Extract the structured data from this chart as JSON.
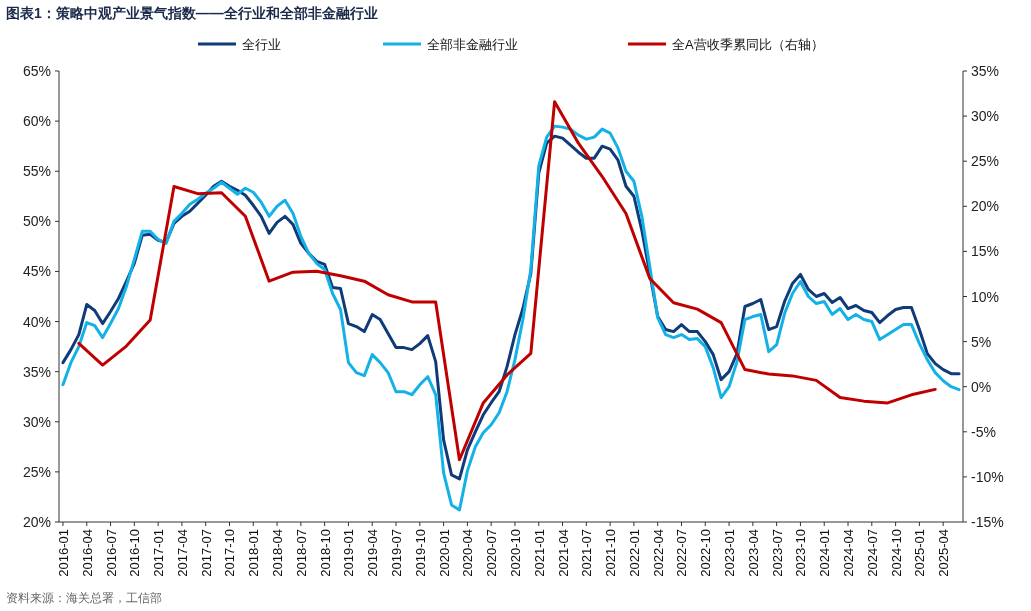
{
  "chart_data": {
    "type": "line",
    "title": "图表1：策略中观产业景气指数——全行业和全部非金融行业",
    "annotations": [
      "资料来源：海关总署，工信部"
    ],
    "legend": "top",
    "marker": "none",
    "line_style": "solid",
    "grid": false,
    "xlim": [
      "2015-12-16",
      "2025-06-16"
    ],
    "xticks": [
      "2016-01",
      "2016-04",
      "2016-07",
      "2016-10",
      "2017-01",
      "2017-04",
      "2017-07",
      "2017-10",
      "2018-01",
      "2018-04",
      "2018-07",
      "2018-10",
      "2019-01",
      "2019-04",
      "2019-07",
      "2019-10",
      "2020-01",
      "2020-04",
      "2020-07",
      "2020-10",
      "2021-01",
      "2021-04",
      "2021-07",
      "2021-10",
      "2022-01",
      "2022-04",
      "2022-07",
      "2022-10",
      "2023-01",
      "2023-04",
      "2023-07",
      "2023-10",
      "2024-01",
      "2024-04",
      "2024-07",
      "2024-10",
      "2025-01",
      "2025-04"
    ],
    "ylim": [
      20,
      65
    ],
    "yticks": [
      {
        "value": 20,
        "label": "20%"
      },
      {
        "value": 25,
        "label": "25%"
      },
      {
        "value": 30,
        "label": "30%"
      },
      {
        "value": 35,
        "label": "35%"
      },
      {
        "value": 40,
        "label": "40%"
      },
      {
        "value": 45,
        "label": "45%"
      },
      {
        "value": 50,
        "label": "50%"
      },
      {
        "value": 55,
        "label": "55%"
      },
      {
        "value": 60,
        "label": "60%"
      },
      {
        "value": 65,
        "label": "65%"
      }
    ],
    "y2lim": [
      -15,
      35
    ],
    "y2ticks": [
      {
        "value": -15,
        "label": "-15%"
      },
      {
        "value": -10,
        "label": "-10%"
      },
      {
        "value": -5,
        "label": "-5%"
      },
      {
        "value": 0,
        "label": "0%"
      },
      {
        "value": 5,
        "label": "5%"
      },
      {
        "value": 10,
        "label": "10%"
      },
      {
        "value": 15,
        "label": "15%"
      },
      {
        "value": 20,
        "label": "20%"
      },
      {
        "value": 25,
        "label": "25%"
      },
      {
        "value": 30,
        "label": "30%"
      },
      {
        "value": 35,
        "label": "35%"
      }
    ],
    "x": [
      "2016-01",
      "2016-02",
      "2016-03",
      "2016-04",
      "2016-05",
      "2016-06",
      "2016-07",
      "2016-08",
      "2016-09",
      "2016-10",
      "2016-11",
      "2016-12",
      "2017-01",
      "2017-02",
      "2017-03",
      "2017-04",
      "2017-05",
      "2017-06",
      "2017-07",
      "2017-08",
      "2017-09",
      "2017-10",
      "2017-11",
      "2017-12",
      "2018-01",
      "2018-02",
      "2018-03",
      "2018-04",
      "2018-05",
      "2018-06",
      "2018-07",
      "2018-08",
      "2018-09",
      "2018-10",
      "2018-11",
      "2018-12",
      "2019-01",
      "2019-02",
      "2019-03",
      "2019-04",
      "2019-05",
      "2019-06",
      "2019-07",
      "2019-08",
      "2019-09",
      "2019-10",
      "2019-11",
      "2019-12",
      "2020-01",
      "2020-02",
      "2020-03",
      "2020-04",
      "2020-05",
      "2020-06",
      "2020-07",
      "2020-08",
      "2020-09",
      "2020-10",
      "2020-11",
      "2020-12",
      "2021-01",
      "2021-02",
      "2021-03",
      "2021-04",
      "2021-05",
      "2021-06",
      "2021-07",
      "2021-08",
      "2021-09",
      "2021-10",
      "2021-11",
      "2021-12",
      "2022-01",
      "2022-02",
      "2022-03",
      "2022-04",
      "2022-05",
      "2022-06",
      "2022-07",
      "2022-08",
      "2022-09",
      "2022-10",
      "2022-11",
      "2022-12",
      "2023-01",
      "2023-02",
      "2023-03",
      "2023-04",
      "2023-05",
      "2023-06",
      "2023-07",
      "2023-08",
      "2023-09",
      "2023-10",
      "2023-11",
      "2023-12",
      "2024-01",
      "2024-02",
      "2024-03",
      "2024-04",
      "2024-05",
      "2024-06",
      "2024-07",
      "2024-08",
      "2024-09",
      "2024-10",
      "2024-11",
      "2024-12",
      "2025-01",
      "2025-02",
      "2025-03",
      "2025-04",
      "2025-05",
      "2025-06"
    ],
    "series": [
      {
        "name": "全行业",
        "color": "#0f3b78",
        "values": [
          35.9,
          37.2,
          38.7,
          41.7,
          41.1,
          39.8,
          41.0,
          42.3,
          44.0,
          45.8,
          48.6,
          48.7,
          48.1,
          47.9,
          49.8,
          50.5,
          51.0,
          51.8,
          52.6,
          53.5,
          54.0,
          53.5,
          53.1,
          52.6,
          51.6,
          50.5,
          48.8,
          49.9,
          50.5,
          49.7,
          47.8,
          46.8,
          46.0,
          45.7,
          43.4,
          43.3,
          39.8,
          39.5,
          39.0,
          40.7,
          40.2,
          38.8,
          37.4,
          37.4,
          37.2,
          37.8,
          38.6,
          36.0,
          28.2,
          24.7,
          24.3,
          27.2,
          29.0,
          30.7,
          31.9,
          33.0,
          35.5,
          38.7,
          41.3,
          44.8,
          54.8,
          57.8,
          58.5,
          58.3,
          57.6,
          56.9,
          56.3,
          56.3,
          57.5,
          57.2,
          56.1,
          53.5,
          52.5,
          49.1,
          44.8,
          40.5,
          39.2,
          39.0,
          39.7,
          39.0,
          39.0,
          38.0,
          36.7,
          34.2,
          35.0,
          36.8,
          41.5,
          41.8,
          42.2,
          39.2,
          39.5,
          42.0,
          43.8,
          44.7,
          43.2,
          42.5,
          42.8,
          41.9,
          42.4,
          41.3,
          41.6,
          41.1,
          40.9,
          39.9,
          40.6,
          41.2,
          41.4,
          41.4,
          39.2,
          36.8,
          35.8,
          35.2,
          34.8,
          34.8
        ]
      },
      {
        "name": "全部非金融行业",
        "color": "#14b1e7",
        "values": [
          33.7,
          35.9,
          37.5,
          39.9,
          39.6,
          38.4,
          39.8,
          41.3,
          43.5,
          46.2,
          49.0,
          49.0,
          48.2,
          47.8,
          50.0,
          50.8,
          51.7,
          52.2,
          52.8,
          53.3,
          53.9,
          53.3,
          52.7,
          53.3,
          52.9,
          51.9,
          50.5,
          51.5,
          52.1,
          50.8,
          48.5,
          46.8,
          45.8,
          45.2,
          42.8,
          41.2,
          35.9,
          34.9,
          34.6,
          36.7,
          35.9,
          34.9,
          33.0,
          33.0,
          32.7,
          33.7,
          34.5,
          32.7,
          24.9,
          21.7,
          21.2,
          25.1,
          27.5,
          28.9,
          29.7,
          30.9,
          33.0,
          36.2,
          40.2,
          45.2,
          55.5,
          58.4,
          59.5,
          59.4,
          59.2,
          58.6,
          58.2,
          58.4,
          59.2,
          58.8,
          57.3,
          55.0,
          54.0,
          50.5,
          45.5,
          40.4,
          38.7,
          38.4,
          38.7,
          38.2,
          38.3,
          37.5,
          35.4,
          32.4,
          33.5,
          36.0,
          40.2,
          40.5,
          40.7,
          37.0,
          37.7,
          40.8,
          42.8,
          44.0,
          42.5,
          41.8,
          42.0,
          40.7,
          41.3,
          40.2,
          40.7,
          40.2,
          40.0,
          38.2,
          38.7,
          39.2,
          39.7,
          39.7,
          37.8,
          36.2,
          34.9,
          34.1,
          33.5,
          33.2
        ]
      },
      {
        "name": "全A营收季累同比（右轴）",
        "color": "#c00000",
        "axis": "y2",
        "x": [
          "2016-03",
          "2016-06",
          "2016-09",
          "2016-12",
          "2017-03",
          "2017-06",
          "2017-09",
          "2017-12",
          "2018-03",
          "2018-06",
          "2018-09",
          "2018-12",
          "2019-03",
          "2019-06",
          "2019-09",
          "2019-12",
          "2020-03",
          "2020-06",
          "2020-09",
          "2020-12",
          "2021-03",
          "2021-06",
          "2021-09",
          "2021-12",
          "2022-03",
          "2022-06",
          "2022-09",
          "2022-12",
          "2023-03",
          "2023-06",
          "2023-09",
          "2023-12",
          "2024-03",
          "2024-06",
          "2024-09",
          "2024-12",
          "2025-03"
        ],
        "values": [
          4.8,
          2.4,
          4.5,
          7.4,
          22.2,
          21.4,
          21.5,
          18.9,
          11.7,
          12.7,
          12.8,
          12.3,
          11.7,
          10.2,
          9.4,
          9.4,
          -8.1,
          -1.8,
          1.3,
          3.7,
          31.6,
          27.0,
          23.3,
          19.2,
          12.0,
          9.3,
          8.6,
          7.1,
          1.9,
          1.4,
          1.2,
          0.7,
          -1.2,
          -1.6,
          -1.8,
          -0.9,
          -0.3
        ]
      }
    ]
  }
}
